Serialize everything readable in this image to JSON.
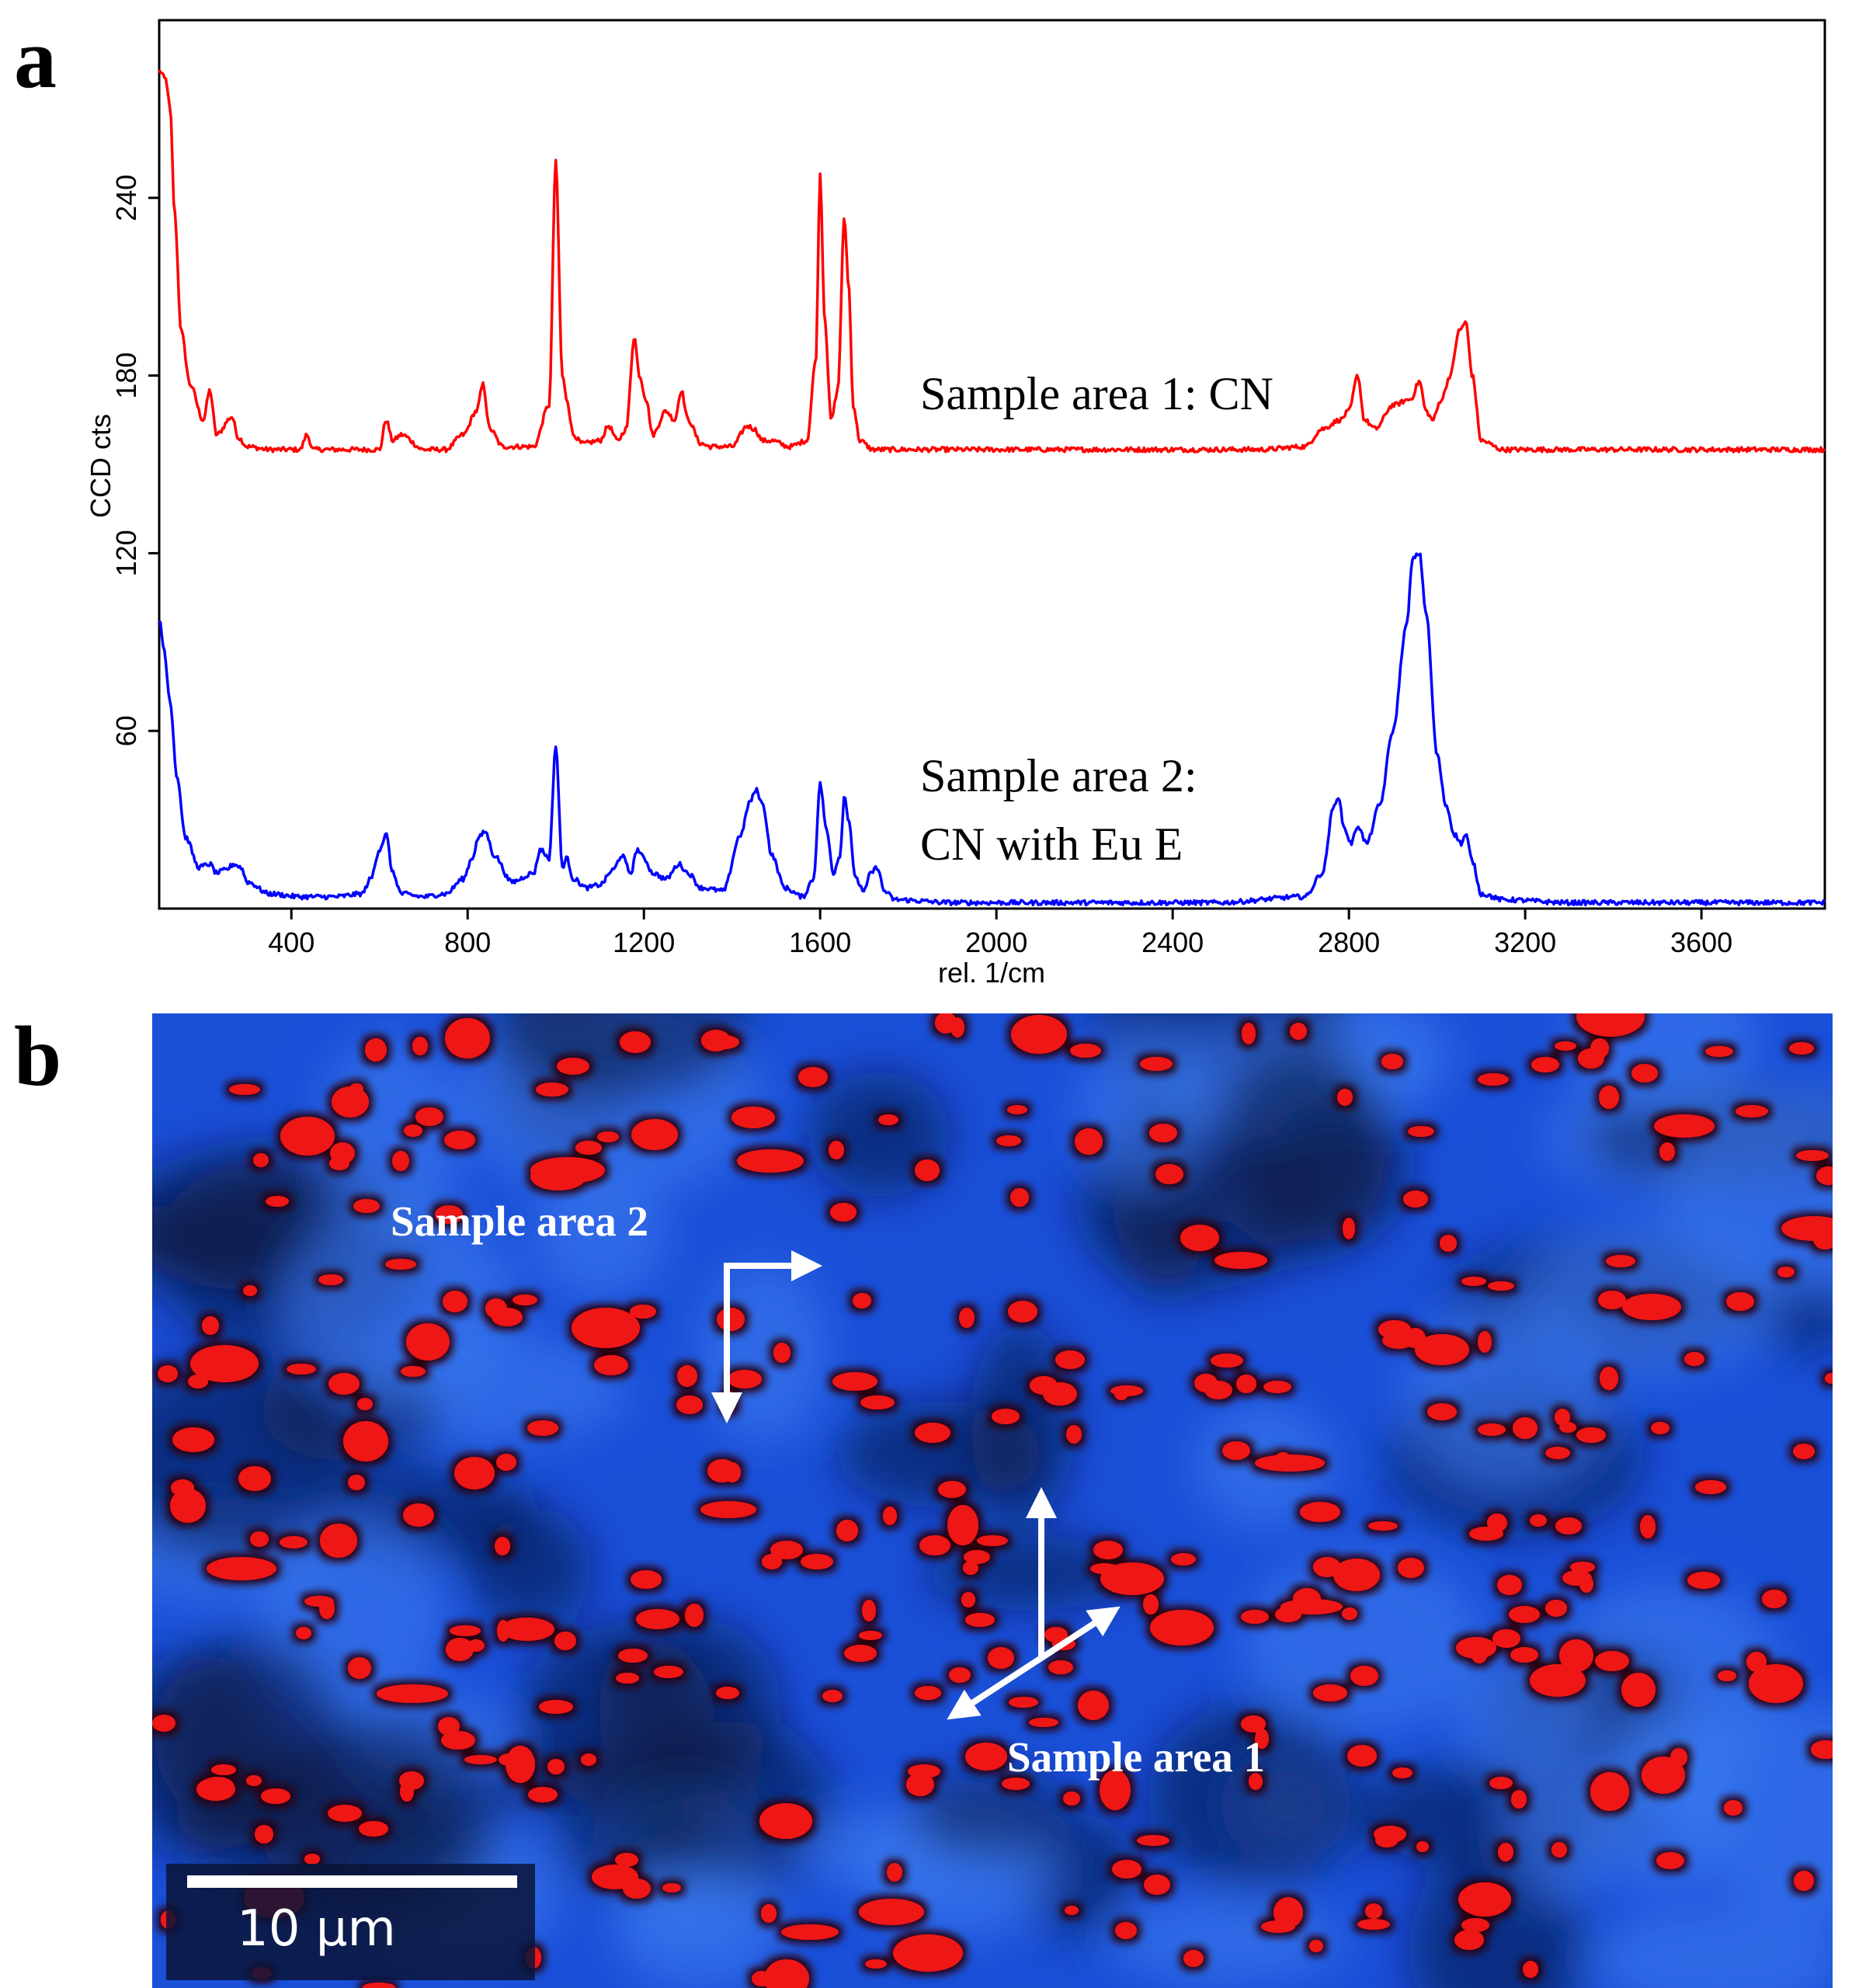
{
  "panel_a_label": "a",
  "panel_b_label": "b",
  "chart_data": {
    "type": "line",
    "title": "",
    "xlabel": "rel. 1/cm",
    "ylabel": "CCD cts",
    "xlim": [
      100,
      3880
    ],
    "ylim": [
      0,
      300
    ],
    "xticks": [
      400,
      800,
      1200,
      1600,
      2000,
      2400,
      2800,
      3200,
      3600
    ],
    "yticks": [
      60,
      120,
      180,
      240
    ],
    "grid": false,
    "series": [
      {
        "name": "Sample area 1: CN",
        "color": "#ff0000",
        "baseline": 155,
        "x": [
          100,
          115,
          125,
          135,
          150,
          170,
          200,
          215,
          230,
          265,
          280,
          300,
          350,
          420,
          435,
          450,
          500,
          600,
          615,
          630,
          650,
          700,
          750,
          790,
          820,
          835,
          850,
          880,
          950,
          985,
          1000,
          1015,
          1025,
          1040,
          1060,
          1100,
          1120,
          1140,
          1160,
          1178,
          1190,
          1205,
          1220,
          1250,
          1270,
          1285,
          1300,
          1330,
          1350,
          1400,
          1435,
          1450,
          1470,
          1490,
          1530,
          1570,
          1590,
          1600,
          1610,
          1625,
          1640,
          1655,
          1665,
          1675,
          1690,
          1720,
          1800,
          2000,
          2300,
          2600,
          2700,
          2740,
          2780,
          2800,
          2820,
          2835,
          2860,
          2900,
          2940,
          2960,
          2975,
          2990,
          3010,
          3030,
          3050,
          3065,
          3080,
          3100,
          3150,
          3300,
          3500,
          3700,
          3880
        ],
        "y": [
          283,
          280,
          270,
          235,
          195,
          177,
          165,
          175,
          160,
          166,
          159,
          156,
          155,
          155,
          160,
          155,
          155,
          155,
          165,
          158,
          160,
          155,
          155,
          160,
          168,
          177,
          162,
          156,
          156,
          170,
          252,
          180,
          172,
          160,
          157,
          158,
          163,
          158,
          162,
          193,
          180,
          172,
          160,
          168,
          165,
          175,
          165,
          157,
          156,
          156,
          163,
          162,
          158,
          158,
          156,
          158,
          185,
          248,
          200,
          165,
          175,
          233,
          210,
          170,
          158,
          155,
          155,
          155,
          155,
          155,
          156,
          162,
          165,
          168,
          180,
          165,
          162,
          170,
          172,
          178,
          168,
          165,
          172,
          180,
          195,
          198,
          180,
          158,
          155,
          155,
          155,
          155,
          155
        ]
      },
      {
        "name": "Sample area 2: CN with Eu E",
        "color": "#0000ff",
        "baseline": 2,
        "x": [
          100,
          110,
          125,
          140,
          160,
          190,
          215,
          230,
          250,
          270,
          285,
          300,
          350,
          420,
          500,
          560,
          580,
          600,
          615,
          630,
          650,
          700,
          750,
          790,
          810,
          825,
          840,
          860,
          900,
          950,
          965,
          985,
          1000,
          1015,
          1025,
          1040,
          1070,
          1100,
          1130,
          1150,
          1170,
          1185,
          1200,
          1220,
          1250,
          1280,
          1300,
          1330,
          1380,
          1420,
          1440,
          1455,
          1470,
          1490,
          1520,
          1560,
          1585,
          1600,
          1615,
          1630,
          1645,
          1655,
          1665,
          1680,
          1700,
          1715,
          1730,
          1745,
          1770,
          1900,
          2200,
          2500,
          2700,
          2740,
          2765,
          2775,
          2790,
          2805,
          2820,
          2840,
          2870,
          2900,
          2930,
          2945,
          2960,
          2975,
          3000,
          3020,
          3040,
          3055,
          3065,
          3080,
          3100,
          3150,
          3300,
          3500,
          3700,
          3880
        ],
        "y": [
          98,
          88,
          70,
          45,
          24,
          14,
          15,
          12,
          13,
          15,
          14,
          9,
          5,
          4,
          4,
          5,
          10,
          20,
          25,
          12,
          5,
          4,
          5,
          10,
          17,
          24,
          26,
          18,
          9,
          12,
          20,
          17,
          55,
          14,
          17,
          10,
          7,
          8,
          13,
          18,
          12,
          20,
          17,
          12,
          10,
          15,
          12,
          7,
          6,
          25,
          36,
          40,
          35,
          18,
          7,
          4,
          10,
          42,
          26,
          12,
          18,
          38,
          30,
          10,
          6,
          12,
          14,
          6,
          3,
          2,
          2,
          2,
          4,
          12,
          34,
          38,
          27,
          22,
          28,
          22,
          35,
          60,
          95,
          118,
          120,
          100,
          52,
          35,
          25,
          22,
          25,
          16,
          5,
          3,
          2,
          2,
          2,
          2
        ]
      }
    ],
    "annotations": [
      "Sample area 1: CN",
      "Sample area 2:",
      "CN with Eu E"
    ]
  },
  "map": {
    "label_area_2": "Sample area 2",
    "label_area_1": "Sample area 1",
    "scale_bar": "10 μm",
    "colors": {
      "background": "#1a4fd8",
      "highlight": "#ef1818",
      "dark": "#0a1740",
      "light": "#3a7af0"
    }
  }
}
